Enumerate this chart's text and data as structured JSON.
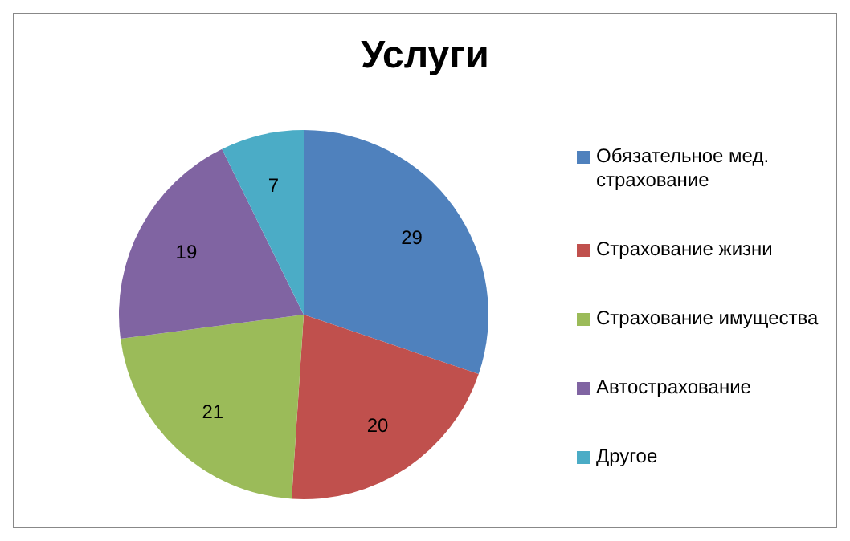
{
  "chart_data": {
    "type": "pie",
    "title": "Услуги",
    "categories": [
      "Обязательное мед. страхование",
      "Страхование жизни",
      "Страхование имущества",
      "Автострахование",
      "Другое"
    ],
    "values": [
      29,
      20,
      21,
      19,
      7
    ],
    "colors": [
      "#4f81bd",
      "#c0504d",
      "#9bbb59",
      "#8064a2",
      "#4bacc6"
    ],
    "data_labels": true,
    "legend": "right"
  }
}
